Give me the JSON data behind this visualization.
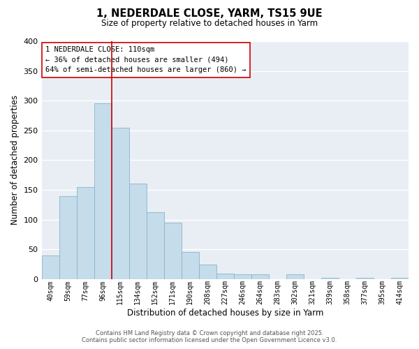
{
  "title": "1, NEDERDALE CLOSE, YARM, TS15 9UE",
  "subtitle": "Size of property relative to detached houses in Yarm",
  "xlabel": "Distribution of detached houses by size in Yarm",
  "ylabel": "Number of detached properties",
  "bar_color": "#c5dcea",
  "bar_edge_color": "#8ab4cc",
  "background_color": "#e8eef4",
  "grid_color": "white",
  "vline_color": "#cc0000",
  "annotation_title": "1 NEDERDALE CLOSE: 110sqm",
  "annotation_line1": "← 36% of detached houses are smaller (494)",
  "annotation_line2": "64% of semi-detached houses are larger (860) →",
  "footer_line1": "Contains HM Land Registry data © Crown copyright and database right 2025.",
  "footer_line2": "Contains public sector information licensed under the Open Government Licence v3.0.",
  "categories": [
    "40sqm",
    "59sqm",
    "77sqm",
    "96sqm",
    "115sqm",
    "134sqm",
    "152sqm",
    "171sqm",
    "190sqm",
    "208sqm",
    "227sqm",
    "246sqm",
    "264sqm",
    "283sqm",
    "302sqm",
    "321sqm",
    "339sqm",
    "358sqm",
    "377sqm",
    "395sqm",
    "414sqm"
  ],
  "values": [
    40,
    140,
    155,
    295,
    255,
    160,
    113,
    95,
    46,
    24,
    9,
    8,
    8,
    0,
    8,
    0,
    2,
    0,
    2,
    0,
    2
  ],
  "ylim": [
    0,
    400
  ],
  "yticks": [
    0,
    50,
    100,
    150,
    200,
    250,
    300,
    350,
    400
  ],
  "vline_index": 3.5
}
